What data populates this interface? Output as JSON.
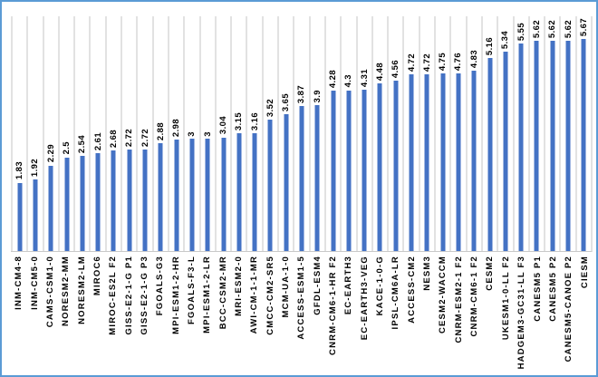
{
  "frame": {
    "border_color": "#5B9BD5",
    "background": "#FFFFFF"
  },
  "chart_data": {
    "type": "bar",
    "title": "",
    "xlabel": "",
    "ylabel": "",
    "legend": "none",
    "grid": "vertical category gridlines only",
    "ylim": [
      0,
      6.3
    ],
    "bar_color": "#4472C4",
    "gridline_color": "#E2E2E2",
    "value_label_rotation_deg": 90,
    "category_label_rotation_deg": 90,
    "categories": [
      "INM-CM4-8",
      "INM-CM5-0",
      "CAMS-CSM1-0",
      "NORESM2-MM",
      "NORESM2-LM",
      "MIROC6",
      "MIROC-ES2L F2",
      "GISS-E2-1-G P1",
      "GISS-E2-1-G P3",
      "FGOALS-G3",
      "MPI-ESM1-2-HR",
      "FGOALS-F3-L",
      "MPI-ESM1-2-LR",
      "BCC-CSM2-MR",
      "MRI-ESM2-0",
      "AWI-CM-1-1-MR",
      "CMCC-CM2-SR5",
      "MCM-UA-1-0",
      "ACCESS-ESM1-5",
      "GFDL-ESM4",
      "CNRM-CM6-1-HR F2",
      "EC-EARTH3",
      "EC-EARTH3-VEG",
      "KACE-1-0-G",
      "IPSL-CM6A-LR",
      "ACCESS-CM2",
      "NESM3",
      "CESM2-WACCM",
      "CNRM-ESM2-1 F2",
      "CNRM-CM6-1 F2",
      "CESM2",
      "UKESM1-0-LL F2",
      "HADGEM3-GC31-LL F3",
      "CANESM5 P1",
      "CANESM5 P2",
      "CANESM5-CANOE P2",
      "CIESM"
    ],
    "values": [
      1.83,
      1.92,
      2.29,
      2.5,
      2.54,
      2.61,
      2.68,
      2.72,
      2.72,
      2.88,
      2.98,
      3,
      3,
      3.04,
      3.15,
      3.16,
      3.52,
      3.65,
      3.87,
      3.9,
      4.28,
      4.3,
      4.31,
      4.48,
      4.56,
      4.72,
      4.72,
      4.75,
      4.76,
      4.83,
      5.16,
      5.34,
      5.55,
      5.62,
      5.62,
      5.62,
      5.67
    ]
  }
}
